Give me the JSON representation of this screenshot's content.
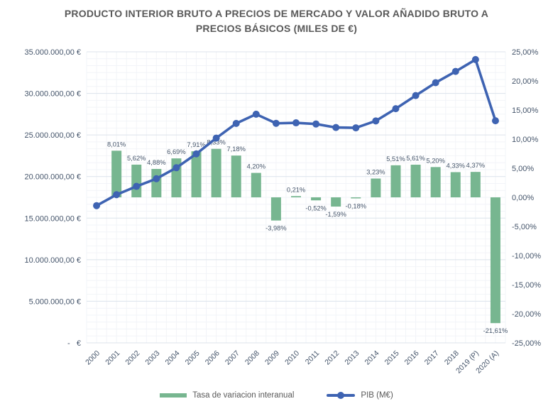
{
  "title": {
    "line1": "PRODUCTO INTERIOR BRUTO A PRECIOS DE MERCADO Y VALOR AÑADIDO BRUTO A",
    "line2": "PRECIOS BÁSICOS (MILES DE €)"
  },
  "colors": {
    "bar": "#77b690",
    "line": "#3e63b2",
    "title_text": "#595959",
    "axis_text": "#44546a",
    "grid_major": "#dce3eb",
    "grid_minor": "#f2f4f8",
    "legend_text": "#595959",
    "background": "#ffffff"
  },
  "legend": {
    "items": [
      {
        "label": "Tasa de variacion interanual",
        "series": "bars"
      },
      {
        "label": "PIB (M€)",
        "series": "line"
      }
    ]
  },
  "chart_data": {
    "type": "combo",
    "title": "PRODUCTO INTERIOR BRUTO A PRECIOS DE MERCADO Y VALOR AÑADIDO BRUTO A PRECIOS BÁSICOS (MILES DE €)",
    "grid": true,
    "legend_position": "bottom",
    "categories": [
      "2000",
      "2001",
      "2002",
      "2003",
      "2004",
      "2005",
      "2006",
      "2007",
      "2008",
      "2009",
      "2010",
      "2011",
      "2012",
      "2013",
      "2014",
      "2015",
      "2016",
      "2017",
      "2018",
      "2019 (P)",
      "2020 (A)"
    ],
    "series": [
      {
        "name": "Tasa de variacion interanual",
        "type": "bar",
        "axis": "right",
        "values": [
          null,
          8.01,
          5.62,
          4.88,
          6.69,
          7.91,
          8.33,
          7.18,
          4.2,
          -3.98,
          0.21,
          -0.52,
          -1.59,
          -0.18,
          3.23,
          5.51,
          5.61,
          5.2,
          4.33,
          4.37,
          -21.61
        ],
        "labels": [
          null,
          "8,01%",
          "5,62%",
          "4,88%",
          "6,69%",
          "7,91%",
          "8,33%",
          "7,18%",
          "4,20%",
          "-3,98%",
          "0,21%",
          "-0,52%",
          "-1,59%",
          "-0,18%",
          "3,23%",
          "5,51%",
          "5,61%",
          "5,20%",
          "4,33%",
          "4,37%",
          "-21,61%"
        ]
      },
      {
        "name": "PIB (M€)",
        "type": "line",
        "axis": "left",
        "values": [
          16500000,
          17820000,
          18820000,
          19740000,
          21060000,
          22730000,
          24620000,
          26390000,
          27500000,
          26400000,
          26460000,
          26320000,
          25900000,
          25860000,
          26690000,
          28160000,
          29740000,
          31290000,
          32640000,
          34070000,
          26710000
        ]
      }
    ],
    "left_axis": {
      "min": 0,
      "max": 35000000,
      "major_step": 5000000,
      "minor_divisions": 6,
      "ticks": [
        {
          "value": 35000000,
          "label": "35.000.000,00 €"
        },
        {
          "value": 30000000,
          "label": "30.000.000,00 €"
        },
        {
          "value": 25000000,
          "label": "25.000.000,00 €"
        },
        {
          "value": 20000000,
          "label": "20.000.000,00 €"
        },
        {
          "value": 15000000,
          "label": "15.000.000,00 €"
        },
        {
          "value": 10000000,
          "label": "10.000.000,00 €"
        },
        {
          "value": 5000000,
          "label": "5.000.000,00 €"
        },
        {
          "value": 0,
          "label": "-   €"
        }
      ]
    },
    "right_axis": {
      "min": -25,
      "max": 25,
      "major_step": 5,
      "ticks": [
        {
          "value": 25,
          "label": "25,00%"
        },
        {
          "value": 20,
          "label": "20,00%"
        },
        {
          "value": 15,
          "label": "15,00%"
        },
        {
          "value": 10,
          "label": "10,00%"
        },
        {
          "value": 5,
          "label": "5,00%"
        },
        {
          "value": 0,
          "label": "0,00%"
        },
        {
          "value": -5,
          "label": "-5,00%"
        },
        {
          "value": -10,
          "label": "-10,00%"
        },
        {
          "value": -15,
          "label": "-15,00%"
        },
        {
          "value": -20,
          "label": "-20,00%"
        },
        {
          "value": -25,
          "label": "-25,00%"
        }
      ]
    }
  }
}
